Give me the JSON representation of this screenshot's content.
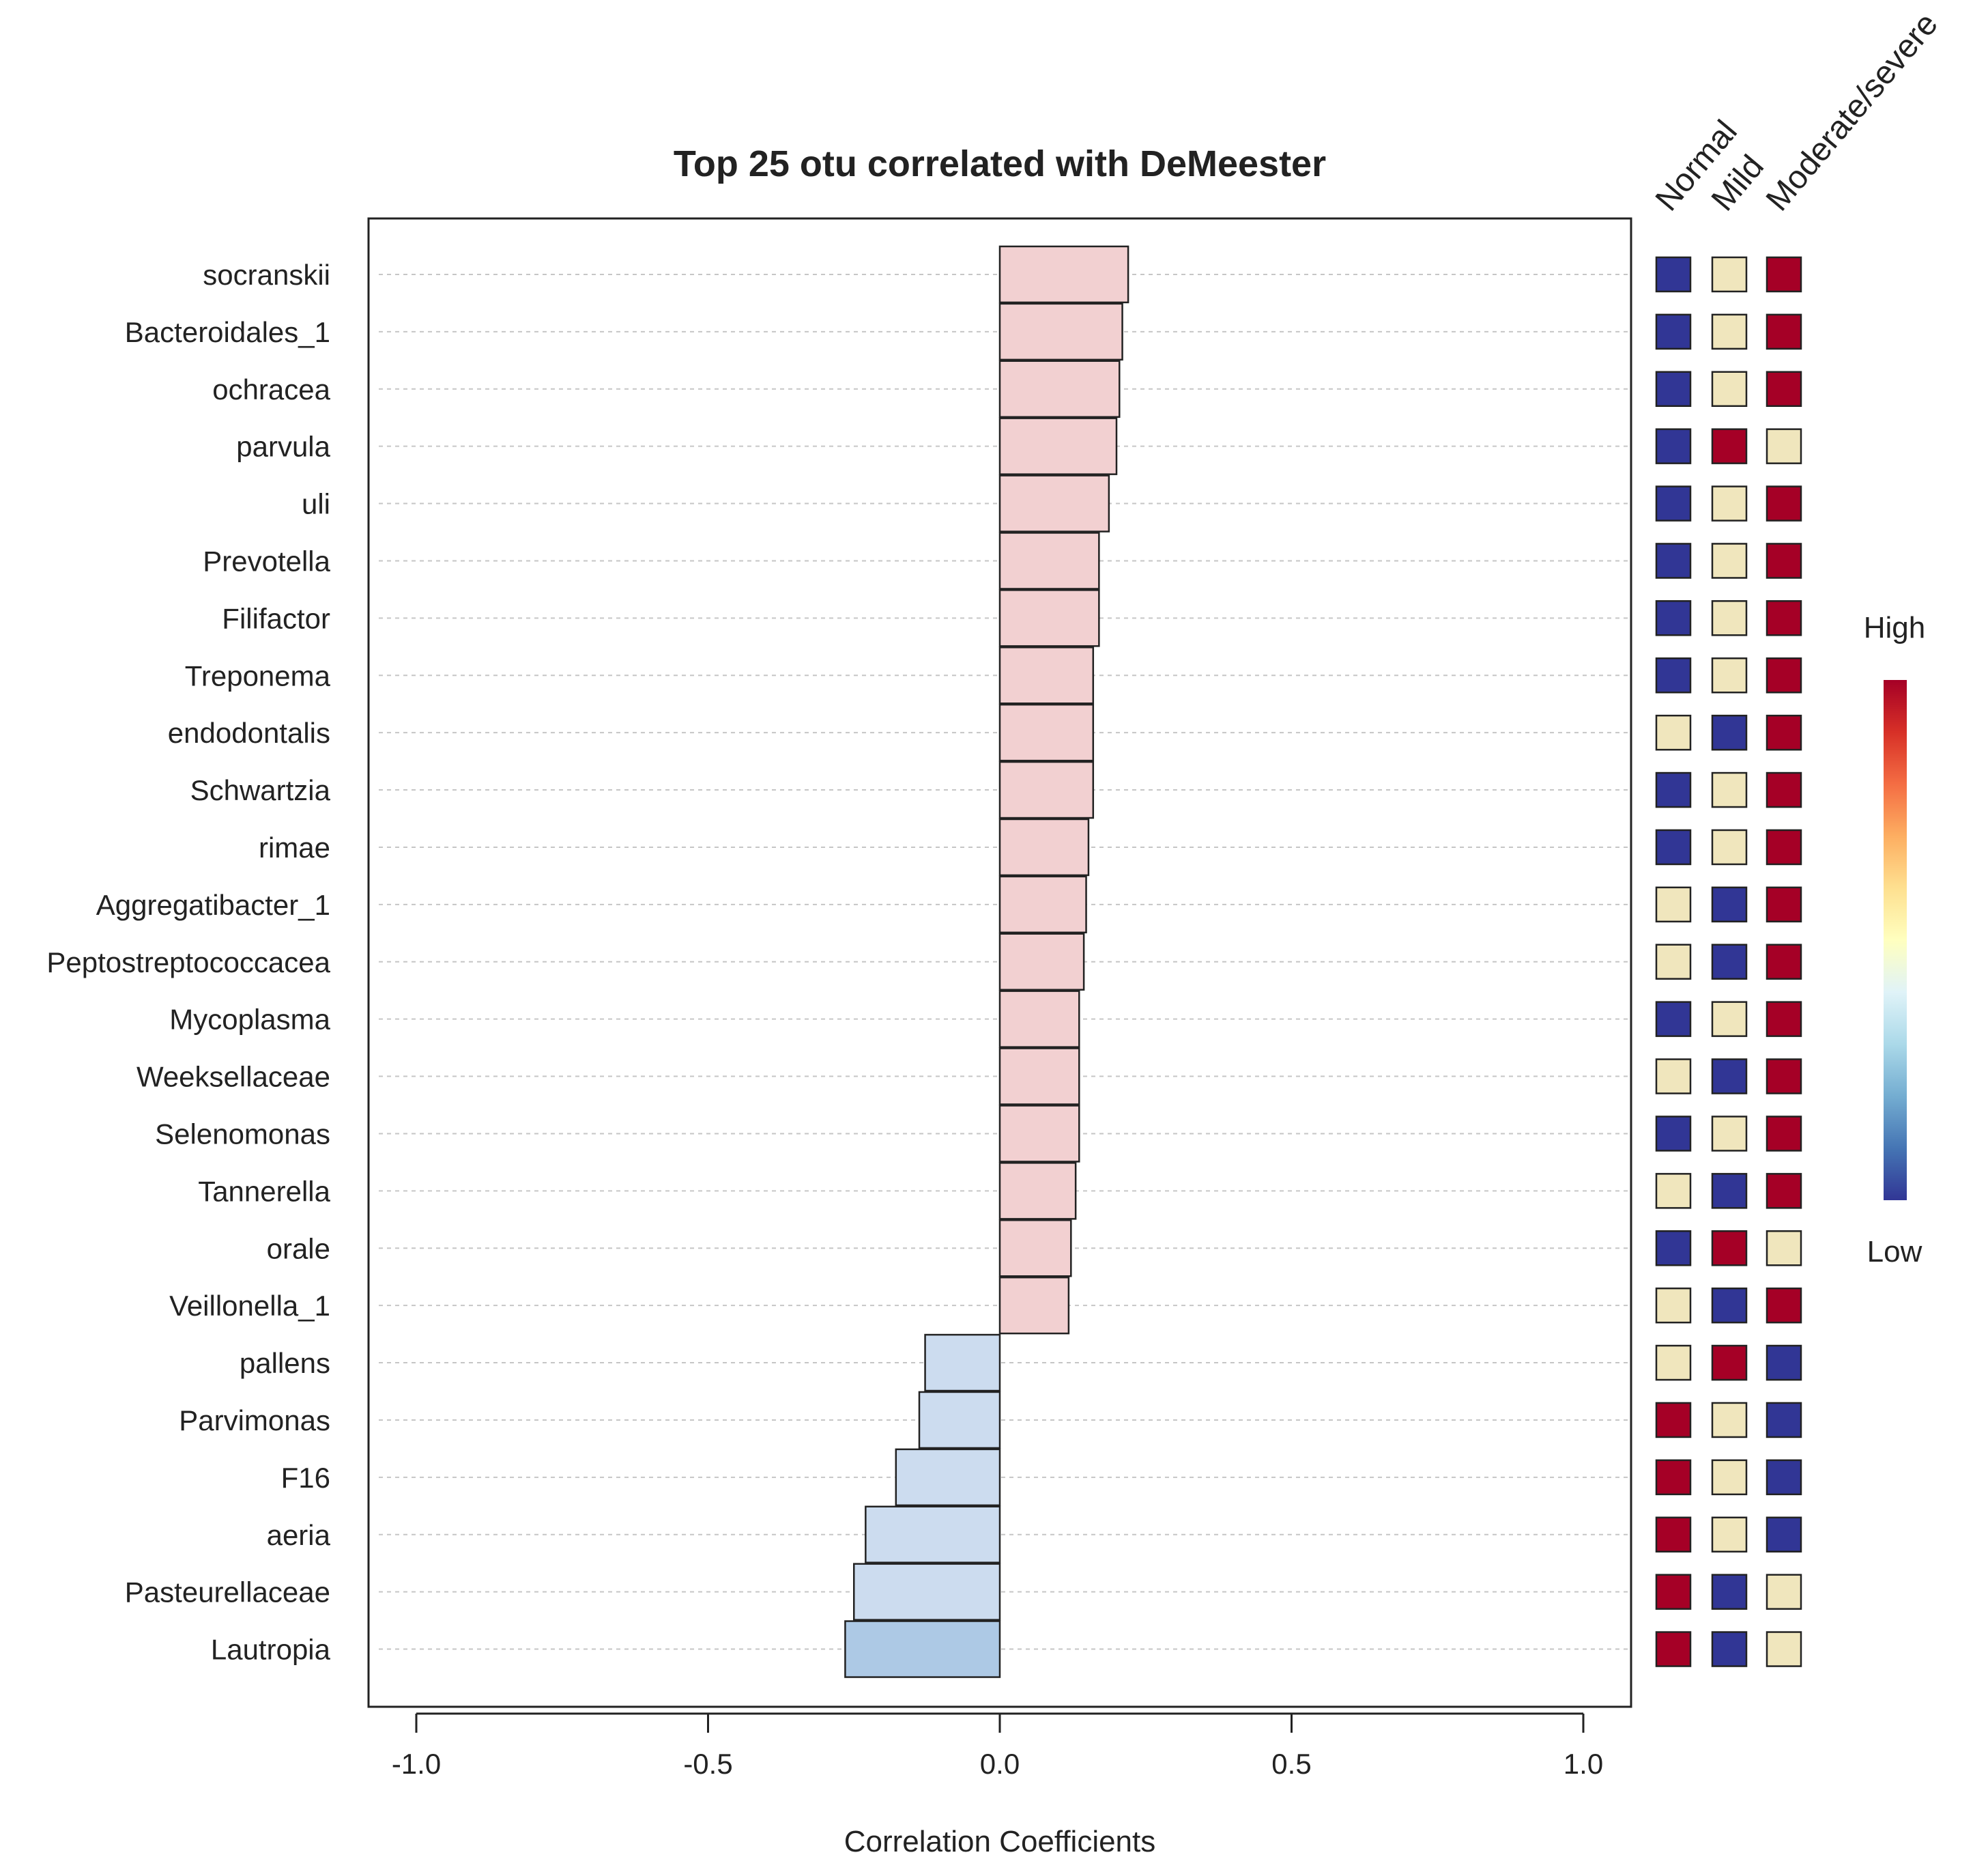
{
  "chart_data": {
    "type": "bar",
    "orientation": "horizontal",
    "title": "Top 25 otu correlated with DeMeester",
    "xlabel": "Correlation Coefficients",
    "ylabel": "",
    "xlim": [
      -1.0,
      1.0
    ],
    "xticks": [
      -1.0,
      -0.5,
      0.0,
      0.5,
      1.0
    ],
    "xtick_labels": [
      "-1.0",
      "-0.5",
      "0.0",
      "0.5",
      "1.0"
    ],
    "grid": "horizontal dashed lines per row",
    "categories": [
      "socranskii",
      "Bacteroidales_1",
      "ochracea",
      "parvula",
      "uli",
      "Prevotella",
      "Filifactor",
      "Treponema",
      "endodontalis",
      "Schwartzia",
      "rimae",
      "Aggregatibacter_1",
      "Peptostreptococcacea",
      "Mycoplasma",
      "Weeksellaceae",
      "Selenomonas",
      "Tannerella",
      "orale",
      "Veillonella_1",
      "pallens",
      "Parvimonas",
      "F16",
      "aeria",
      "Pasteurellaceae",
      "Lautropia"
    ],
    "values": [
      0.22,
      0.21,
      0.205,
      0.2,
      0.187,
      0.17,
      0.17,
      0.16,
      0.16,
      0.16,
      0.152,
      0.148,
      0.144,
      0.136,
      0.136,
      0.136,
      0.13,
      0.122,
      0.118,
      -0.128,
      -0.138,
      -0.178,
      -0.23,
      -0.25,
      -0.265
    ],
    "colors": {
      "positive": "#f2d0d1",
      "negative": "#ccdcef",
      "negative_strong": "#adc9e5",
      "bar_edge": "#222222"
    },
    "group_labels": [
      "Normal",
      "Mild",
      "Moderate/severe"
    ],
    "group_levels": [
      [
        "low",
        "mid",
        "high"
      ],
      [
        "low",
        "mid",
        "high"
      ],
      [
        "low",
        "mid",
        "high"
      ],
      [
        "low",
        "high",
        "mid"
      ],
      [
        "low",
        "mid",
        "high"
      ],
      [
        "low",
        "mid",
        "high"
      ],
      [
        "low",
        "mid",
        "high"
      ],
      [
        "low",
        "mid",
        "high"
      ],
      [
        "mid",
        "low",
        "high"
      ],
      [
        "low",
        "mid",
        "high"
      ],
      [
        "low",
        "mid",
        "high"
      ],
      [
        "mid",
        "low",
        "high"
      ],
      [
        "mid",
        "low",
        "high"
      ],
      [
        "low",
        "mid",
        "high"
      ],
      [
        "mid",
        "low",
        "high"
      ],
      [
        "low",
        "mid",
        "high"
      ],
      [
        "mid",
        "low",
        "high"
      ],
      [
        "low",
        "high",
        "mid"
      ],
      [
        "mid",
        "low",
        "high"
      ],
      [
        "mid",
        "high",
        "low"
      ],
      [
        "high",
        "mid",
        "low"
      ],
      [
        "high",
        "mid",
        "low"
      ],
      [
        "high",
        "mid",
        "low"
      ],
      [
        "high",
        "low",
        "mid"
      ],
      [
        "high",
        "low",
        "mid"
      ]
    ],
    "level_colors": {
      "low": "#313695",
      "mid": "#f0e6bd",
      "high": "#a50026"
    },
    "legend": {
      "high_label": "High",
      "low_label": "Low",
      "position": "right",
      "gradient": [
        "#a50026",
        "#d73027",
        "#f46d43",
        "#fdae61",
        "#fee090",
        "#ffffbf",
        "#e0f3f8",
        "#abd9e9",
        "#74add1",
        "#4575b4",
        "#313695"
      ]
    }
  }
}
